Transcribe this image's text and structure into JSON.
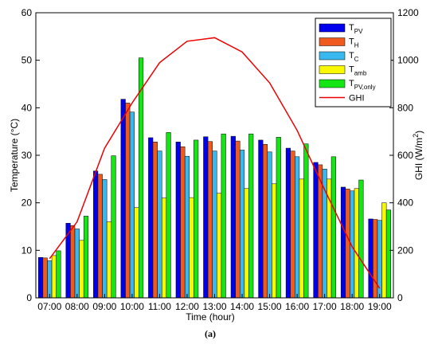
{
  "chart_data": {
    "type": "bar",
    "categories": [
      "07:00",
      "08:00",
      "09:00",
      "10:00",
      "11:00",
      "12:00",
      "13:00",
      "14:00",
      "15:00",
      "16:00",
      "17:00",
      "18:00",
      "19:00"
    ],
    "series": [
      {
        "name": "T_PV",
        "label_main": "T",
        "label_sub": "PV",
        "color": "#0000ee",
        "values": [
          8.5,
          15.7,
          26.7,
          41.8,
          33.7,
          32.8,
          33.9,
          34.0,
          33.2,
          31.5,
          28.5,
          23.3,
          16.6
        ]
      },
      {
        "name": "T_H",
        "label_main": "T",
        "label_sub": "H",
        "color": "#f05a1e",
        "values": [
          8.4,
          15.2,
          26.0,
          41.0,
          32.8,
          31.8,
          32.9,
          33.0,
          32.3,
          30.9,
          28.0,
          22.9,
          16.5
        ]
      },
      {
        "name": "T_C",
        "label_main": "T",
        "label_sub": "C",
        "color": "#38b8ee",
        "values": [
          7.8,
          14.5,
          24.9,
          39.1,
          30.9,
          29.8,
          30.9,
          31.1,
          30.7,
          29.7,
          27.1,
          22.5,
          16.3
        ]
      },
      {
        "name": "T_amb",
        "label_main": "T",
        "label_sub": "amb",
        "color": "#f8f800",
        "values": [
          8.9,
          12.1,
          16.0,
          19.0,
          21.0,
          21.1,
          22.0,
          23.0,
          24.0,
          25.0,
          25.0,
          23.0,
          20.0
        ]
      },
      {
        "name": "T_PV,only",
        "label_main": "T",
        "label_sub": "PV,only",
        "color": "#14e614",
        "values": [
          9.9,
          17.2,
          29.9,
          50.5,
          34.8,
          33.2,
          34.5,
          34.5,
          33.8,
          32.4,
          29.7,
          24.8,
          18.5
        ]
      }
    ],
    "line_series": {
      "name": "GHI",
      "color": "#ee0000",
      "values": [
        165,
        320,
        630,
        820,
        990,
        1080,
        1095,
        1035,
        905,
        705,
        455,
        215,
        40
      ]
    },
    "ylabel_left": "Temperature (°C)",
    "ylabel_right_main": "GHI (W/m",
    "ylabel_right_sup": "2",
    "ylabel_right_end": ")",
    "xlabel": "Time (hour)",
    "ylim_left": [
      0,
      60
    ],
    "ylim_right": [
      0,
      1200
    ],
    "yticks_left": [
      "0",
      "10",
      "20",
      "30",
      "40",
      "50",
      "60"
    ],
    "yticks_right": [
      "0",
      "200",
      "400",
      "600",
      "800",
      "1000",
      "1200"
    ],
    "legend_position": "top-right",
    "grid": false
  },
  "caption": "(a)"
}
